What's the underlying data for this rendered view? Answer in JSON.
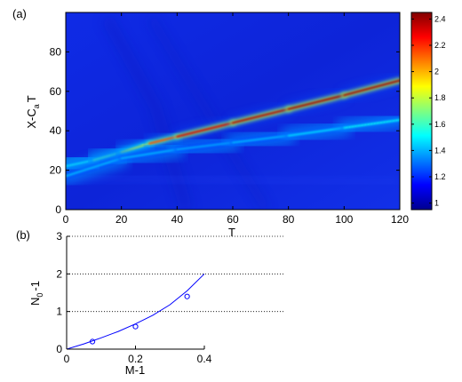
{
  "panel_a": {
    "label": "(a)",
    "xlabel": "T",
    "ylabel_main": "X-C",
    "ylabel_sub": "a",
    "ylabel_tail": "T"
  },
  "panel_b": {
    "label": "(b)",
    "xlabel": "M-1",
    "ylabel_main": "N",
    "ylabel_sub": "0",
    "ylabel_tail": "-1"
  },
  "colorbar": {
    "ticks": [
      "2.4",
      "2.2",
      "2",
      "1.8",
      "1.6",
      "1.4",
      "1.2",
      "1"
    ],
    "colors": [
      "#00008f",
      "#0000ff",
      "#00ffff",
      "#ffff00",
      "#ff0000",
      "#800000"
    ]
  },
  "chart_data": [
    {
      "type": "heatmap",
      "xlabel": "T",
      "ylabel": "X-C_a T",
      "xlim": [
        0,
        120
      ],
      "ylim": [
        0,
        100
      ],
      "xticks": [
        0,
        20,
        40,
        60,
        80,
        100,
        120
      ],
      "yticks": [
        0,
        20,
        40,
        60,
        80
      ],
      "colorbar_range": [
        0.95,
        2.45
      ],
      "colorbar_ticks": [
        1,
        1.2,
        1.4,
        1.6,
        1.8,
        2,
        2.2,
        2.4
      ],
      "grid": false,
      "features": [
        {
          "ridge": "primary",
          "x": [
            0,
            10,
            20,
            30,
            40,
            60,
            80,
            100,
            120
          ],
          "y": [
            22,
            25,
            29,
            33.5,
            37,
            44,
            51,
            58,
            65.5
          ],
          "peak_value": [
            1.5,
            1.55,
            1.7,
            2.0,
            2.3,
            2.35,
            2.4,
            2.4,
            2.4
          ]
        },
        {
          "ridge": "secondary",
          "x": [
            0,
            20,
            40,
            60,
            80,
            100,
            120
          ],
          "y": [
            17,
            26,
            30.5,
            34,
            37.5,
            41.5,
            45.5
          ],
          "peak_value": [
            1.4,
            1.45,
            1.4,
            1.4,
            1.45,
            1.5,
            1.55
          ]
        }
      ]
    },
    {
      "type": "scatter",
      "xlabel": "M-1",
      "ylabel": "N_0-1",
      "xlim": [
        0,
        0.4
      ],
      "ylim": [
        0,
        3
      ],
      "xticks": [
        0,
        0.2,
        0.4
      ],
      "yticks": [
        0,
        1,
        2,
        3
      ],
      "grid": "y-dotted",
      "series": [
        {
          "style": "markers",
          "marker": "circle",
          "color": "#0000ff",
          "x": [
            0.075,
            0.2,
            0.35
          ],
          "y": [
            0.2,
            0.6,
            1.4
          ]
        },
        {
          "style": "line",
          "color": "#0000ff",
          "x": [
            0,
            0.05,
            0.1,
            0.15,
            0.2,
            0.25,
            0.3,
            0.35,
            0.4
          ],
          "y": [
            0,
            0.14,
            0.3,
            0.47,
            0.67,
            0.9,
            1.18,
            1.55,
            2.0
          ]
        }
      ]
    }
  ]
}
